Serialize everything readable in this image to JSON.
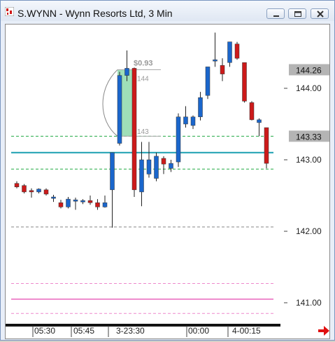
{
  "window": {
    "title": "S.WYNN - Wynn Resorts Ltd, 3 Min",
    "icons": {
      "app": "chart-app-icon",
      "minimize": "minimize-icon",
      "maximize": "maximize-icon",
      "close": "close-icon",
      "scroll": "arrow-right-icon"
    }
  },
  "chart": {
    "price_axis": [
      {
        "value": 144.0,
        "label": "144.00"
      },
      {
        "value": 143.0,
        "label": "143.00"
      },
      {
        "value": 142.0,
        "label": "142.00"
      },
      {
        "value": 141.0,
        "label": "141.00"
      }
    ],
    "price_badges": [
      {
        "value": 144.26,
        "label": "144.26"
      },
      {
        "value": 143.33,
        "label": "143.33"
      }
    ],
    "time_labels": [
      "05:30",
      "05:45",
      "3-23:30",
      "00:00",
      "4-00:15"
    ],
    "measure_tool": {
      "delta": "$0.93",
      "high": "144",
      "low": "143"
    },
    "colors": {
      "up": "#1a66cc",
      "down": "#cc1a1a",
      "cyan": "#1a9fb0",
      "green": "#22aa44",
      "pink": "#ee88cc",
      "badge": "#b4b4b4",
      "box": "#7fd4a0"
    }
  },
  "chart_data": {
    "type": "candlestick",
    "series": [
      {
        "o": 142.67,
        "h": 142.7,
        "l": 142.6,
        "c": 142.62
      },
      {
        "o": 142.64,
        "h": 142.66,
        "l": 142.53,
        "c": 142.55
      },
      {
        "o": 142.57,
        "h": 142.6,
        "l": 142.47,
        "c": 142.55
      },
      {
        "o": 142.55,
        "h": 142.6,
        "l": 142.53,
        "c": 142.59
      },
      {
        "o": 142.58,
        "h": 142.6,
        "l": 142.5,
        "c": 142.52
      },
      {
        "o": 142.46,
        "h": 142.51,
        "l": 142.41,
        "c": 142.48
      },
      {
        "o": 142.4,
        "h": 142.44,
        "l": 142.32,
        "c": 142.34
      },
      {
        "o": 142.34,
        "h": 142.48,
        "l": 142.32,
        "c": 142.45
      },
      {
        "o": 142.42,
        "h": 142.47,
        "l": 142.3,
        "c": 142.44
      },
      {
        "o": 142.41,
        "h": 142.45,
        "l": 142.38,
        "c": 142.43
      },
      {
        "o": 142.43,
        "h": 142.5,
        "l": 142.37,
        "c": 142.4
      },
      {
        "o": 142.4,
        "h": 142.45,
        "l": 142.3,
        "c": 142.34
      },
      {
        "o": 142.34,
        "h": 142.5,
        "l": 142.33,
        "c": 142.4
      },
      {
        "o": 142.58,
        "h": 143.1,
        "l": 142.05,
        "c": 143.1
      },
      {
        "o": 143.23,
        "h": 144.23,
        "l": 143.2,
        "c": 144.18
      },
      {
        "o": 144.18,
        "h": 144.53,
        "l": 144.1,
        "c": 144.28
      },
      {
        "o": 144.28,
        "h": 144.29,
        "l": 142.48,
        "c": 142.58
      },
      {
        "o": 142.55,
        "h": 143.25,
        "l": 142.35,
        "c": 143.0
      },
      {
        "o": 142.8,
        "h": 143.25,
        "l": 142.75,
        "c": 143.0
      },
      {
        "o": 142.74,
        "h": 143.1,
        "l": 142.7,
        "c": 143.05
      },
      {
        "o": 143.02,
        "h": 143.05,
        "l": 142.8,
        "c": 142.94
      },
      {
        "o": 142.88,
        "h": 143.0,
        "l": 142.83,
        "c": 142.95
      },
      {
        "o": 142.97,
        "h": 143.65,
        "l": 142.9,
        "c": 143.6
      },
      {
        "o": 143.5,
        "h": 143.75,
        "l": 143.45,
        "c": 143.6
      },
      {
        "o": 143.48,
        "h": 143.62,
        "l": 143.43,
        "c": 143.6
      },
      {
        "o": 143.6,
        "h": 143.95,
        "l": 143.55,
        "c": 143.87
      },
      {
        "o": 143.9,
        "h": 144.3,
        "l": 143.85,
        "c": 144.3
      },
      {
        "o": 144.4,
        "h": 144.78,
        "l": 144.3,
        "c": 144.4
      },
      {
        "o": 144.32,
        "h": 144.42,
        "l": 144.1,
        "c": 144.2
      },
      {
        "o": 144.36,
        "h": 144.65,
        "l": 144.3,
        "c": 144.65
      },
      {
        "o": 144.62,
        "h": 144.65,
        "l": 144.4,
        "c": 144.42
      },
      {
        "o": 144.36,
        "h": 144.36,
        "l": 143.8,
        "c": 143.82
      },
      {
        "o": 143.8,
        "h": 143.82,
        "l": 143.55,
        "c": 143.56
      },
      {
        "o": 143.52,
        "h": 143.58,
        "l": 143.33,
        "c": 143.56
      },
      {
        "o": 143.45,
        "h": 143.45,
        "l": 142.88,
        "c": 142.95
      }
    ],
    "ylim": [
      140.7,
      145.2
    ],
    "horizontal_levels": [
      {
        "value": 143.33,
        "style": "green-dash"
      },
      {
        "value": 143.1,
        "style": "cyan-solid"
      },
      {
        "value": 142.87,
        "style": "green-dash"
      },
      {
        "value": 142.06,
        "style": "gray-dash"
      },
      {
        "value": 141.27,
        "style": "pink-dash"
      },
      {
        "value": 141.05,
        "style": "pink-solid"
      },
      {
        "value": 140.85,
        "style": "pink-dash"
      }
    ]
  }
}
